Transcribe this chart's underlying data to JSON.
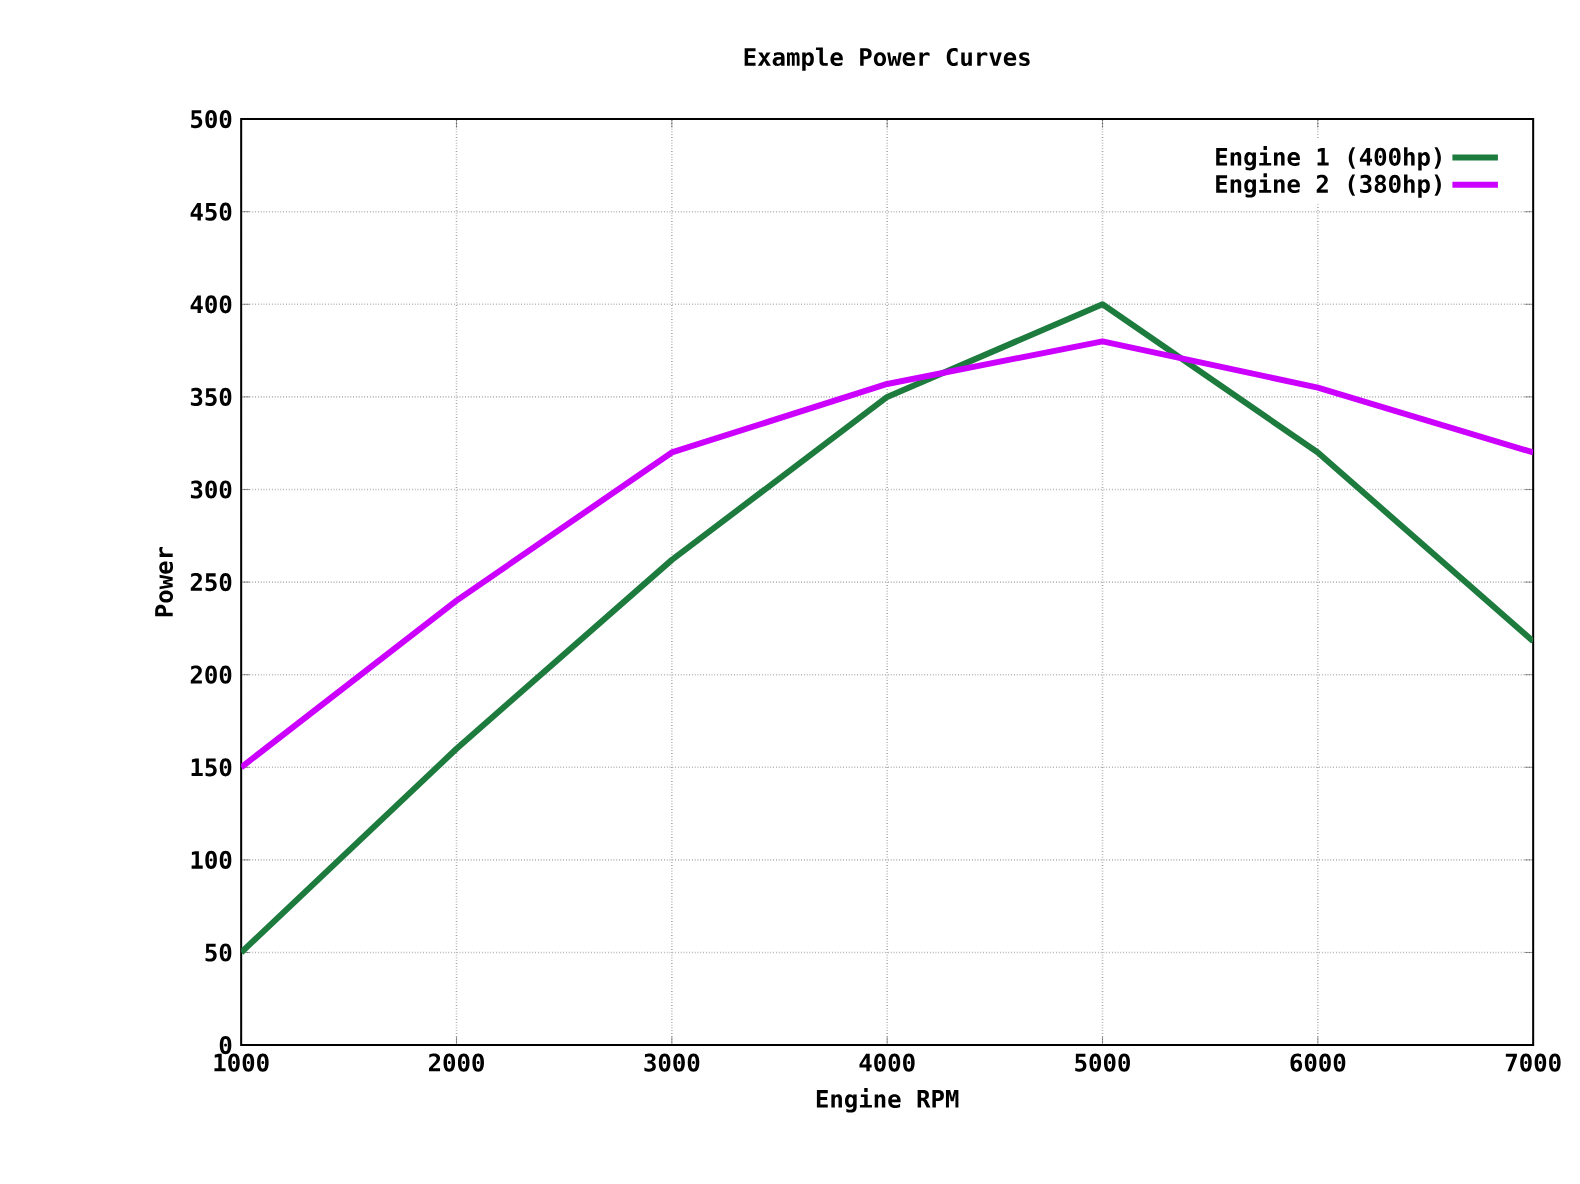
{
  "chart_data": {
    "type": "line",
    "title": "Example Power Curves",
    "xlabel": "Engine RPM",
    "ylabel": "Power",
    "x": [
      1000,
      2000,
      3000,
      4000,
      5000,
      6000,
      7000
    ],
    "series": [
      {
        "name": "Engine 1 (400hp)",
        "color": "#1e7b3e",
        "values": [
          50,
          160,
          262,
          350,
          400,
          320,
          218
        ]
      },
      {
        "name": "Engine 2 (380hp)",
        "color": "#cc00ff",
        "values": [
          150,
          240,
          320,
          357,
          380,
          355,
          320
        ]
      }
    ],
    "xlim": [
      1000,
      7000
    ],
    "xticks": [
      1000,
      2000,
      3000,
      4000,
      5000,
      6000,
      7000
    ],
    "ylim": [
      0,
      500
    ],
    "yticks": [
      0,
      50,
      100,
      150,
      200,
      250,
      300,
      350,
      400,
      450,
      500
    ],
    "grid": true,
    "legend": "top right",
    "marker": "none",
    "line_style": "solid"
  }
}
